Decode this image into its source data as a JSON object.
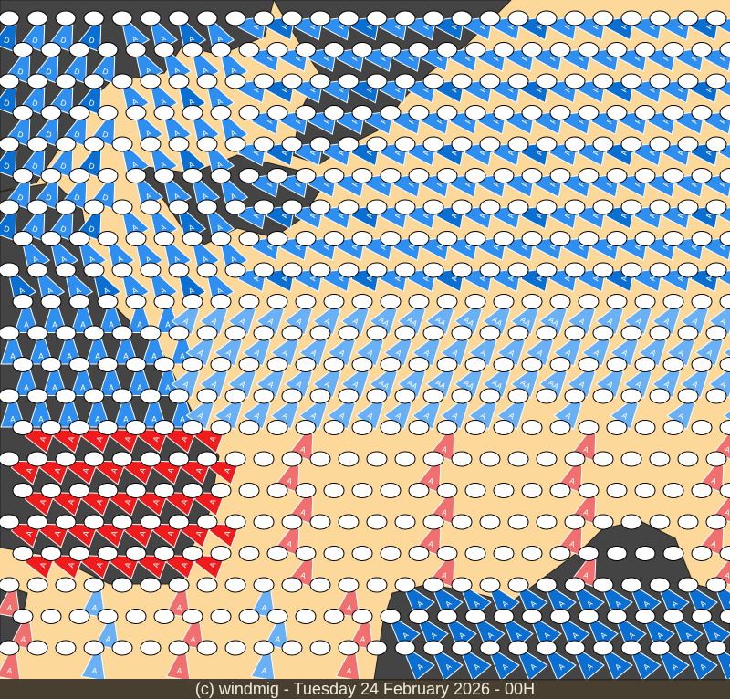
{
  "footer": {
    "text": "(c) windmig - Tuesday 24 February 2026 - 00H"
  },
  "colors": {
    "land": "#fcd89a",
    "sea": "#444444",
    "borders": "#333333",
    "station": "#ffffff",
    "wind_strong": "#0a6fd0",
    "wind_moderate": "#2e8ff0",
    "wind_light": "#6ab0f5",
    "wind_red": "#ee1c1c",
    "wind_light_red": "#f07070"
  },
  "marker_labels": {
    "single": "A",
    "double": "AA",
    "deep": "D"
  }
}
